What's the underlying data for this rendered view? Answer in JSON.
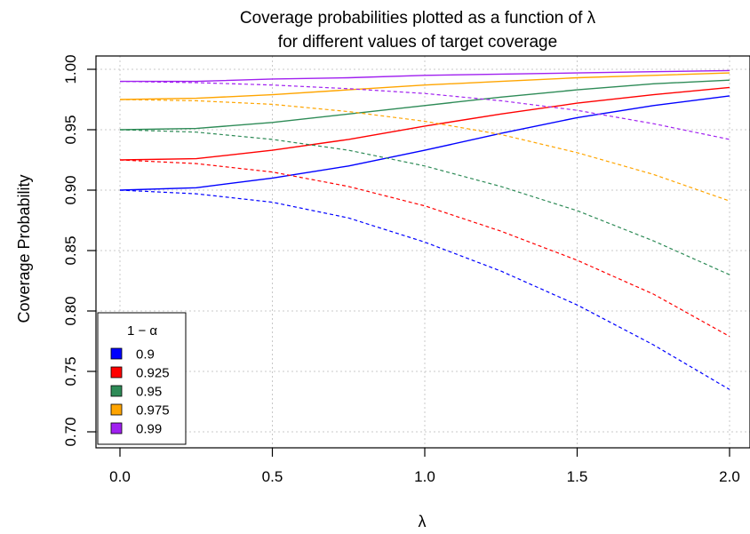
{
  "chart_data": {
    "type": "line",
    "title_lines": [
      "Coverage probabilities plotted as a function of λ",
      "for different values of target coverage"
    ],
    "xlabel": "λ",
    "ylabel": "Coverage Probability",
    "xlim": [
      0,
      2
    ],
    "ylim": [
      0.7,
      1.0
    ],
    "x_ticks": [
      "0.0",
      "0.5",
      "1.0",
      "1.5",
      "2.0"
    ],
    "y_ticks": [
      "0.70",
      "0.75",
      "0.80",
      "0.85",
      "0.90",
      "0.95",
      "1.00"
    ],
    "grid": true,
    "legend_title": "1 − α",
    "legend_position": "bottom-left",
    "x": [
      0.0,
      0.25,
      0.5,
      0.75,
      1.0,
      1.25,
      1.5,
      1.75,
      2.0
    ],
    "series": [
      {
        "name": "0.9",
        "color": "#0000ff",
        "solid": [
          0.9,
          0.902,
          0.91,
          0.92,
          0.933,
          0.947,
          0.96,
          0.97,
          0.978
        ],
        "dashed": [
          0.9,
          0.897,
          0.89,
          0.877,
          0.857,
          0.833,
          0.805,
          0.772,
          0.735
        ]
      },
      {
        "name": "0.925",
        "color": "#ff0000",
        "solid": [
          0.925,
          0.926,
          0.933,
          0.942,
          0.953,
          0.963,
          0.972,
          0.979,
          0.985
        ],
        "dashed": [
          0.925,
          0.922,
          0.915,
          0.903,
          0.887,
          0.866,
          0.842,
          0.814,
          0.779
        ]
      },
      {
        "name": "0.95",
        "color": "#2e8b57",
        "solid": [
          0.95,
          0.951,
          0.956,
          0.963,
          0.97,
          0.977,
          0.983,
          0.988,
          0.991
        ],
        "dashed": [
          0.95,
          0.948,
          0.942,
          0.933,
          0.92,
          0.903,
          0.883,
          0.858,
          0.83
        ]
      },
      {
        "name": "0.975",
        "color": "#ffa500",
        "solid": [
          0.975,
          0.976,
          0.979,
          0.983,
          0.987,
          0.99,
          0.993,
          0.995,
          0.997
        ],
        "dashed": [
          0.975,
          0.974,
          0.971,
          0.965,
          0.957,
          0.946,
          0.931,
          0.913,
          0.891
        ]
      },
      {
        "name": "0.99",
        "color": "#a020f0",
        "solid": [
          0.99,
          0.99,
          0.992,
          0.993,
          0.995,
          0.996,
          0.997,
          0.998,
          0.999
        ],
        "dashed": [
          0.99,
          0.989,
          0.987,
          0.984,
          0.98,
          0.974,
          0.966,
          0.955,
          0.942
        ]
      }
    ]
  }
}
